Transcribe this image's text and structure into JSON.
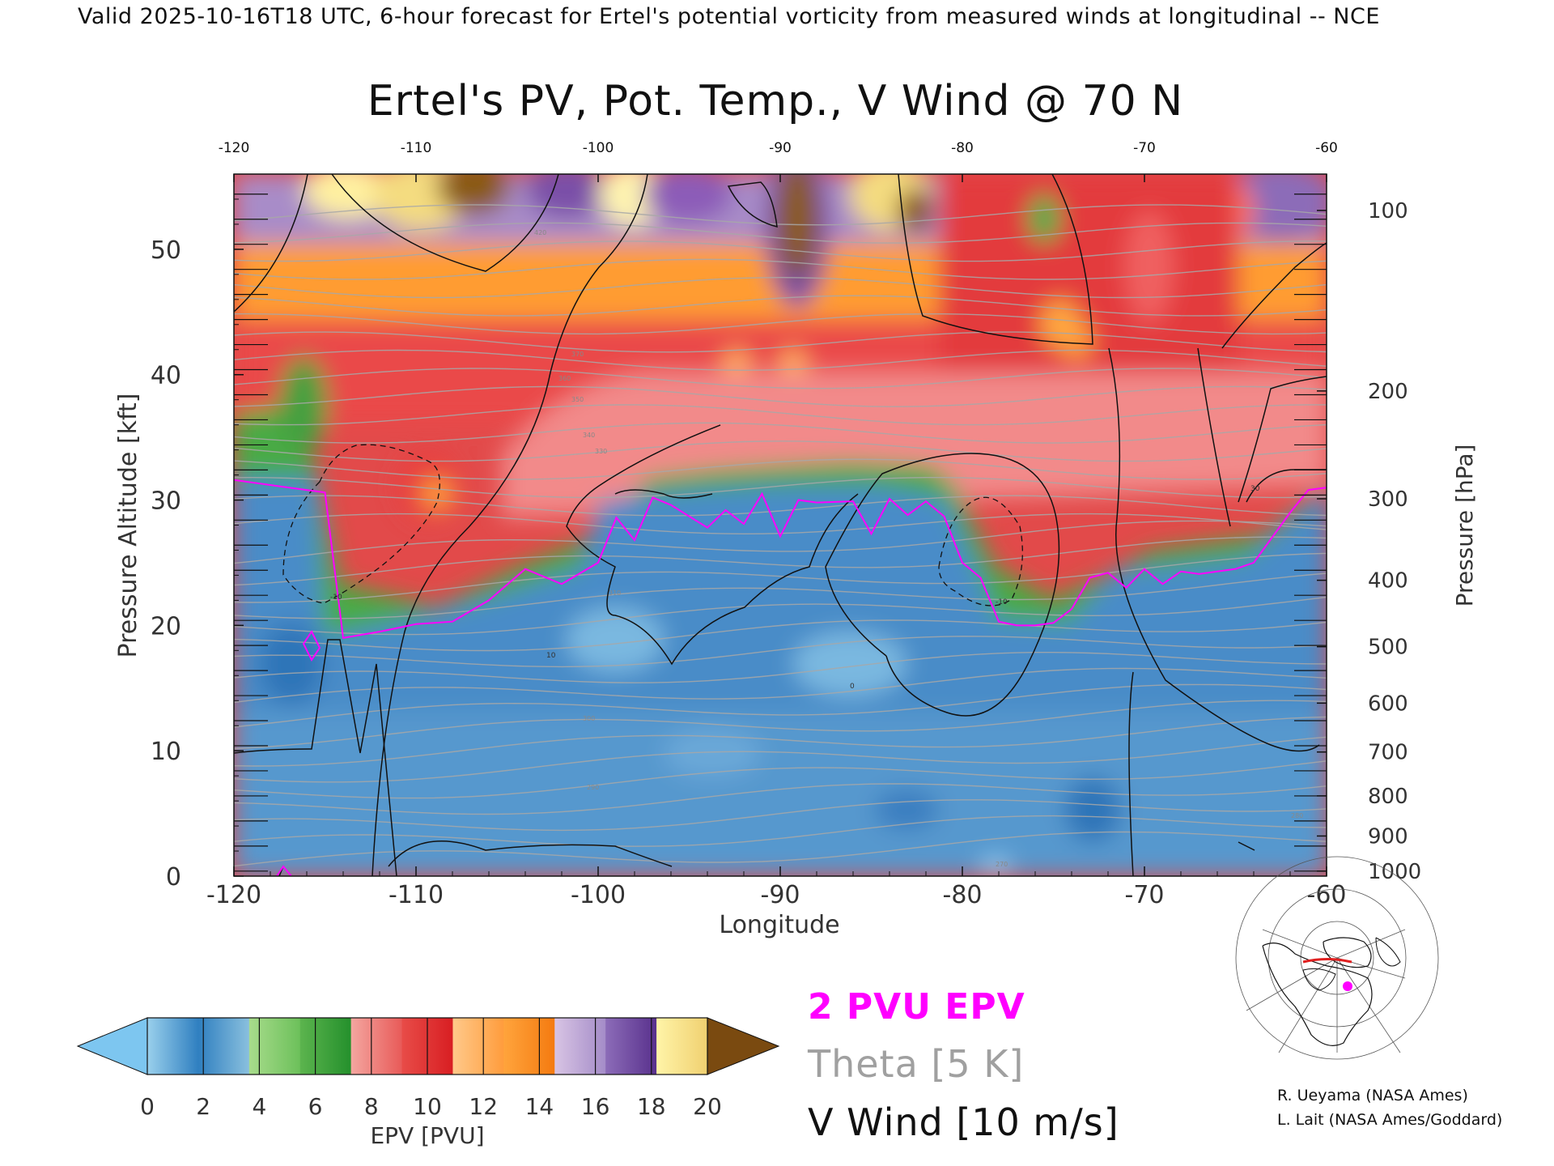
{
  "header": "Valid 2025-10-16T18 UTC, 6-hour forecast for Ertel's potential vorticity from measured winds at longitudinal -- NCE",
  "chart_data": {
    "type": "heatmap",
    "title": "Ertel's PV, Pot. Temp., V Wind @ 70 N",
    "xlabel": "Longitude",
    "ylabel": "Pressure Altitude [kft]",
    "ylabel_right": "Pressure [hPa]",
    "xlim": [
      -120,
      -60
    ],
    "ylim": [
      0,
      56
    ],
    "x_ticks": [
      "-120",
      "-110",
      "-100",
      "-90",
      "-80",
      "-70",
      "-60"
    ],
    "x_tick_values": [
      -120,
      -110,
      -100,
      -90,
      -80,
      -70,
      -60
    ],
    "y_ticks": [
      "0",
      "10",
      "20",
      "30",
      "40",
      "50"
    ],
    "y_tick_values": [
      0,
      10,
      20,
      30,
      40,
      50
    ],
    "pressure_ticks": [
      {
        "label": "100",
        "kft": 53.1
      },
      {
        "label": "200",
        "kft": 38.7
      },
      {
        "label": "300",
        "kft": 30.1
      },
      {
        "label": "400",
        "kft": 23.6
      },
      {
        "label": "500",
        "kft": 18.3
      },
      {
        "label": "600",
        "kft": 13.8
      },
      {
        "label": "700",
        "kft": 9.9
      },
      {
        "label": "800",
        "kft": 6.4
      },
      {
        "label": "900",
        "kft": 3.2
      },
      {
        "label": "1000",
        "kft": 0.4
      }
    ],
    "two_pvu_height_kft": {
      "lon": [
        -120,
        -117,
        -115,
        -114,
        -112,
        -110,
        -108,
        -106,
        -104,
        -102,
        -100,
        -99,
        -98,
        -97,
        -96,
        -94,
        -93,
        -92,
        -91,
        -90,
        -89,
        -88,
        -86,
        -85,
        -84,
        -83,
        -82,
        -81,
        -80,
        -79,
        -78,
        -77,
        -76,
        -75,
        -74,
        -73,
        -72,
        -71,
        -70,
        -69,
        -68,
        -67,
        -66,
        -65,
        -64,
        -63,
        -62,
        -61,
        -60
      ],
      "kft": [
        31.6,
        31.0,
        30.6,
        19.0,
        19.5,
        20.1,
        20.3,
        22.0,
        24.5,
        23.3,
        25.0,
        28.6,
        26.8,
        30.2,
        29.6,
        27.8,
        29.2,
        28.1,
        30.5,
        27.1,
        30.0,
        29.8,
        29.9,
        27.3,
        30.1,
        28.8,
        29.9,
        28.7,
        25.0,
        23.8,
        20.3,
        20.0,
        20.0,
        20.2,
        21.3,
        23.8,
        24.2,
        23.0,
        24.5,
        23.3,
        24.3,
        24.1,
        24.3,
        24.5,
        25.0,
        27.0,
        29.0,
        30.8,
        31.0
      ]
    },
    "dashed_contour_label": "-10",
    "wind_contour_labels": [
      "-10",
      "10",
      "0",
      "30",
      "-10"
    ],
    "theta_labels": [
      "350",
      "370",
      "420",
      "360",
      "340",
      "330",
      "310",
      "300",
      "290",
      "280",
      "270"
    ]
  },
  "colorbar": {
    "label": "EPV [PVU]",
    "ticks": [
      "0",
      "2",
      "4",
      "6",
      "8",
      "10",
      "12",
      "14",
      "16",
      "18",
      "20"
    ],
    "under_color": "#7dc6f0",
    "over_color": "#7a4a10",
    "segments": [
      [
        "#9ad0ec",
        "#2f7fc0"
      ],
      [
        "#2f7fc0",
        "#8ac0de"
      ],
      [
        "#a8dc8c",
        "#6cc05a"
      ],
      [
        "#5cb44e",
        "#24902c"
      ],
      [
        "#f4a6a0",
        "#e85a58"
      ],
      [
        "#e84c48",
        "#d81e22"
      ],
      [
        "#ffc98a",
        "#ff9c3c"
      ],
      [
        "#ffa43c",
        "#f47a10"
      ],
      [
        "#d8c4e4",
        "#a48cc8"
      ],
      [
        "#8c6cb8",
        "#58308c"
      ],
      [
        "#fff4a8",
        "#f0d070"
      ]
    ]
  },
  "legend": {
    "pvu": "2 PVU EPV",
    "pvu_color": "#ff00ff",
    "theta": "Theta [5 K]",
    "theta_color": "#a0a0a0",
    "wind": "V Wind [10 m/s]",
    "wind_color": "#111111"
  },
  "credits": {
    "line1": "R. Ueyama (NASA Ames)",
    "line2": "L. Lait (NASA Ames/Goddard)"
  }
}
